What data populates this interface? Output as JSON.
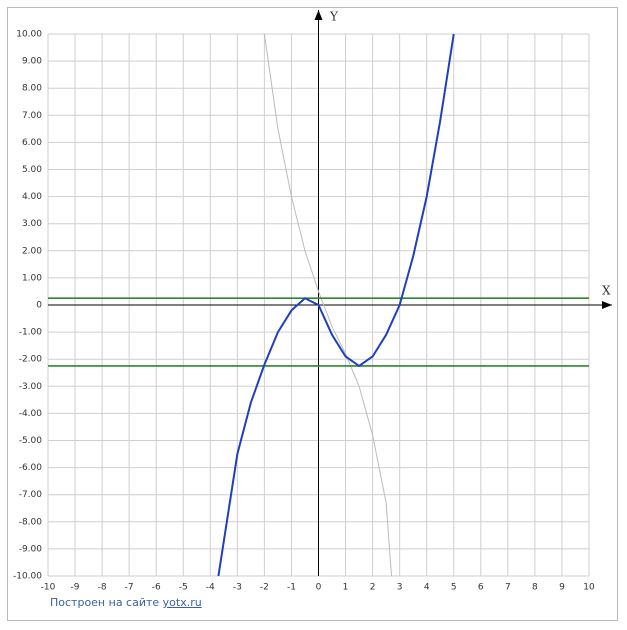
{
  "chart_data": {
    "type": "line",
    "x_label": "X",
    "y_label": "Y",
    "xlim": [
      -10,
      10
    ],
    "ylim": [
      -10,
      10
    ],
    "xticks": [
      -10,
      -9,
      -8,
      -7,
      -6,
      -5,
      -4,
      -3,
      -2,
      -1,
      0,
      1,
      2,
      3,
      4,
      5,
      6,
      7,
      8,
      9,
      10
    ],
    "yticks": [
      {
        "value": 10,
        "label": "10.00"
      },
      {
        "value": 9,
        "label": "9.00"
      },
      {
        "value": 8,
        "label": "8.00"
      },
      {
        "value": 7,
        "label": "7.00"
      },
      {
        "value": 6,
        "label": "6.00"
      },
      {
        "value": 5,
        "label": "5.00"
      },
      {
        "value": 4,
        "label": "4.00"
      },
      {
        "value": 3,
        "label": "3.00"
      },
      {
        "value": 2,
        "label": "2.00"
      },
      {
        "value": 1,
        "label": "1.00"
      },
      0,
      {
        "value": -1,
        "label": "-1.00"
      },
      {
        "value": -2,
        "label": "-2.00"
      },
      {
        "value": -3,
        "label": "-3.00"
      },
      {
        "value": -4,
        "label": "-4.00"
      },
      {
        "value": -5,
        "label": "-5.00"
      },
      {
        "value": -6,
        "label": "-6.00"
      },
      {
        "value": -7,
        "label": "-7.00"
      },
      {
        "value": -8,
        "label": "-8.00"
      },
      {
        "value": -9,
        "label": "-9.00"
      },
      {
        "value": -10,
        "label": "-10.00"
      }
    ],
    "grid": true,
    "series": [
      {
        "color": "#bbbbbb",
        "x": [
          -2,
          -1.5,
          -1,
          -0.5,
          0,
          0.5,
          1,
          1.5,
          2,
          2.5,
          2.7
        ],
        "values": [
          10,
          6.5,
          4,
          2,
          0.5,
          -0.8,
          -1.8,
          -3,
          -4.8,
          -7.3,
          -10
        ]
      },
      {
        "color": "#2a8a2a",
        "x": [
          -10,
          10
        ],
        "values": [
          0.25,
          0.25
        ]
      },
      {
        "color": "#2a8a2a",
        "x": [
          -10,
          10
        ],
        "values": [
          -2.25,
          -2.25
        ]
      },
      {
        "color": "#1f3fbf",
        "x": [
          -3.7,
          -3,
          -2.5,
          -2,
          -1.5,
          -1,
          -0.5,
          0,
          0.5,
          1,
          1.5,
          2,
          2.5,
          3,
          3.5,
          4,
          4.5,
          5
        ],
        "values": [
          -10,
          -5.5,
          -3.6,
          -2.2,
          -1,
          -0.2,
          0.25,
          0,
          -1.1,
          -1.9,
          -2.25,
          -1.9,
          -1.1,
          0,
          1.8,
          4,
          6.8,
          10
        ]
      }
    ],
    "credit": {
      "text": "Построен на сайте",
      "link": "yotx.ru"
    }
  }
}
